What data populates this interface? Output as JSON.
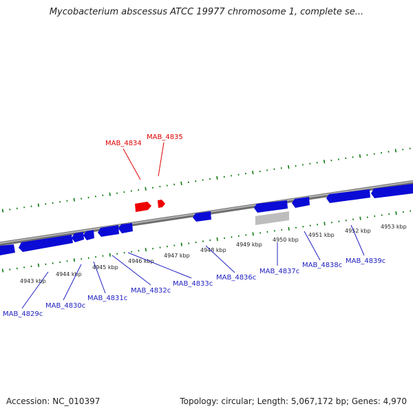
{
  "title": "Mycobacterium abscessus ATCC 19977 chromosome 1, complete se...",
  "accession": "Accession: NC_010397",
  "summary": "Topology: circular; Length: 5,067,172 bp; Genes: 4,970",
  "colors": {
    "backbone": "#8a8a8a",
    "tick": "#0a7a0a",
    "reverse_gene": "#0b0bd6",
    "forward_gene": "#ee0000",
    "unlabeled_feature": "#bdbdbd",
    "reverse_label": "#2020c0",
    "forward_label": "#dd0000"
  },
  "scale_labels": [
    "4943 kbp",
    "4944 kbp",
    "4945 kbp",
    "4946 kbp",
    "4947 kbp",
    "4948 kbp",
    "4949 kbp",
    "4950 kbp",
    "4951 kbp",
    "4952 kbp",
    "4953 kbp"
  ],
  "gene_labels": {
    "forward": [
      "MAB_4834",
      "MAB_4835"
    ],
    "reverse": [
      "MAB_4829c",
      "MAB_4830c",
      "MAB_4831c",
      "MAB_4832c",
      "MAB_4833c",
      "MAB_4836c",
      "MAB_4837c",
      "MAB_4838c",
      "MAB_4839c"
    ]
  }
}
